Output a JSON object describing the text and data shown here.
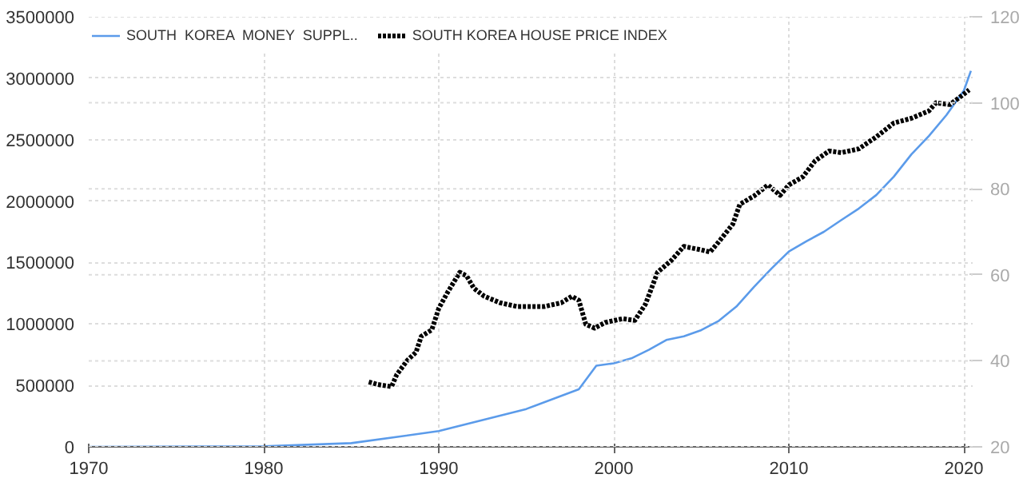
{
  "chart_data": {
    "type": "line",
    "xlim": [
      1970,
      2020.5
    ],
    "xticks": [
      1970,
      1980,
      1990,
      2000,
      2010,
      2020
    ],
    "ylim": [
      0,
      3500000
    ],
    "yticks": [
      0,
      500000,
      1000000,
      1500000,
      2000000,
      2500000,
      3000000,
      3500000
    ],
    "y2lim": [
      20,
      120
    ],
    "y2ticks": [
      20,
      40,
      60,
      80,
      100,
      120
    ],
    "grid": true,
    "legend": "top left",
    "series": [
      {
        "name": "SOUTH  KOREA  MONEY  SUPPL..",
        "color": "#5b9bea",
        "line_style": "solid",
        "x": [
          1970,
          1980,
          1985,
          1990,
          1995,
          1998,
          1999,
          2000,
          2001,
          2002,
          2003,
          2004,
          2005,
          2006,
          2007,
          2008,
          2009,
          2010,
          2011,
          2012,
          2013,
          2014,
          2015,
          2016,
          2017,
          2018,
          2019,
          2020,
          2020.4
        ],
        "values": [
          0,
          5000,
          30000,
          128000,
          308000,
          468000,
          660000,
          680000,
          720000,
          790000,
          870000,
          900000,
          950000,
          1026000,
          1141000,
          1300000,
          1450000,
          1590000,
          1673000,
          1750000,
          1846000,
          1940000,
          2050000,
          2200000,
          2380000,
          2530000,
          2700000,
          2900000,
          3060000
        ]
      },
      {
        "name": "SOUTH KOREA HOUSE PRICE INDEX",
        "color": "#000000",
        "axis": "y2",
        "line_style": "dotted",
        "x": [
          1986.0,
          1986.5,
          1987.3,
          1987.6,
          1988.2,
          1988.7,
          1989.0,
          1989.6,
          1990.0,
          1990.5,
          1991.2,
          1991.6,
          1992.0,
          1992.6,
          1993.5,
          1994.5,
          1996.0,
          1997.0,
          1997.6,
          1998.0,
          1998.4,
          1998.9,
          1999.5,
          2000.5,
          2001.2,
          2001.8,
          2002.5,
          2003.3,
          2004.0,
          2005.0,
          2005.5,
          2006.0,
          2006.8,
          2007.2,
          2008.0,
          2008.8,
          2009.5,
          2010.0,
          2010.8,
          2011.5,
          2012.3,
          2013.0,
          2014.0,
          2015.0,
          2016.0,
          2017.0,
          2018.0,
          2018.4,
          2019.2,
          2019.7,
          2020.3
        ],
        "values": [
          35.1,
          34.5,
          34.0,
          36.8,
          40.1,
          42.0,
          45.7,
          47.2,
          52.2,
          55.9,
          60.6,
          59.7,
          56.9,
          55.0,
          53.5,
          52.6,
          52.6,
          53.5,
          55.0,
          54.1,
          48.5,
          47.6,
          48.9,
          49.8,
          49.4,
          53.1,
          60.6,
          63.4,
          66.6,
          65.8,
          65.3,
          67.7,
          71.8,
          76.4,
          78.3,
          80.9,
          78.5,
          80.9,
          82.8,
          86.5,
          88.8,
          88.4,
          89.3,
          92.1,
          95.3,
          96.4,
          98.1,
          100.0,
          99.6,
          101.1,
          103.0
        ]
      }
    ]
  }
}
